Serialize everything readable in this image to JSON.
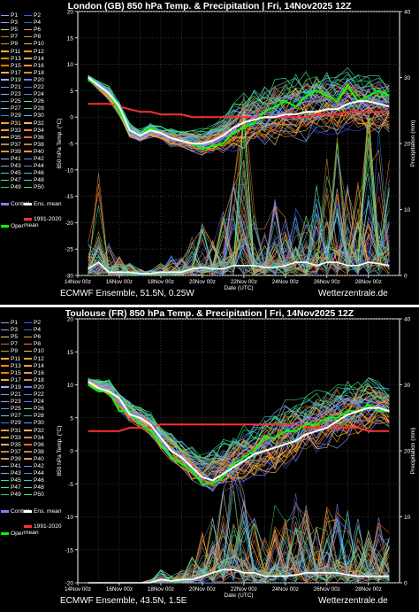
{
  "panels": [
    {
      "title": "London  (GB)  850 hPa Temp. & Precipitation | Fri, 14Nov2025 12Z",
      "footer_left": "ECMWF Ensemble, 51.5N, 0.25W",
      "footer_right": "Wetterzentrale.de"
    },
    {
      "title": "Toulouse  (FR)  850 hPa Temp. & Precipitation | Fri, 14Nov2025 12Z",
      "footer_left": "ECMWF Ensemble, 43.5N, 1.5E",
      "footer_right": "Wetterzentrale.de"
    }
  ],
  "legend": {
    "members": [
      "P1",
      "P2",
      "P3",
      "P4",
      "P5",
      "P6",
      "P7",
      "P8",
      "P9",
      "P10",
      "P11",
      "P12",
      "P13",
      "P14",
      "P15",
      "P16",
      "P17",
      "P18",
      "P19",
      "P20",
      "P21",
      "P22",
      "P23",
      "P24",
      "P25",
      "P26",
      "P27",
      "P28",
      "P29",
      "P30",
      "P31",
      "P32",
      "P33",
      "P34",
      "P35",
      "P36",
      "P37",
      "P38",
      "P39",
      "P40",
      "P41",
      "P42",
      "P43",
      "P44",
      "P45",
      "P46",
      "P47",
      "P48",
      "P49",
      "P50"
    ],
    "member_colors": [
      "#9aa0ff",
      "#3a5cff",
      "#9aa0ff",
      "#3a5cff",
      "#ffd27a",
      "#ff9a3a",
      "#c07a30",
      "#ff8a20",
      "#d6a020",
      "#ffc040",
      "#ffb030",
      "#ff9f10",
      "#ff8c00",
      "#ffa040",
      "#ff7a00",
      "#ff9050",
      "#e8b040",
      "#d09030",
      "#a0b0ff",
      "#6a80ff",
      "#7a9aff",
      "#5a70ff",
      "#90b0ff",
      "#5080ff",
      "#50a0ff",
      "#40ffa0",
      "#60d0ff",
      "#40c0c0",
      "#3080ff",
      "#50b0ff",
      "#ff9a40",
      "#ffb060",
      "#ffa030",
      "#ff8a30",
      "#ffb050",
      "#ff7020",
      "#c08040",
      "#d07a30",
      "#e09040",
      "#ff9a40",
      "#a0c0ff",
      "#7090ff",
      "#80a0ff",
      "#6080ff",
      "#40e0a0",
      "#40c0e0",
      "#30ff80",
      "#50e0c0",
      "#40d070",
      "#30ff60"
    ],
    "control_label": "Control",
    "mean_label": "Ens. mean",
    "oper_label": "Oper",
    "clim_label": "1991-2020\nmean",
    "control_color": "#8080ff",
    "mean_color": "#ffffff",
    "oper_color": "#00ff00",
    "clim_color": "#ff3030"
  },
  "chart_data": [
    {
      "type": "line",
      "location": "London (GB)",
      "x_tick_labels": [
        "14Nov 00z",
        "16Nov 00z",
        "18Nov 00z",
        "20Nov 00z",
        "22Nov 00z",
        "24Nov 00z",
        "26Nov 00z",
        "28Nov 00z"
      ],
      "xlabel": "Date (UTC)",
      "ylabel": "850 hPa Temp. (°C)",
      "ylabel_right": "Precipitation (mm)",
      "ylim": [
        -30,
        20
      ],
      "yticks": [
        -30,
        -25,
        -20,
        -15,
        -10,
        -5,
        0,
        5,
        10,
        15,
        20
      ],
      "ylim_right": [
        0,
        40
      ],
      "yticks_right": [
        0,
        10,
        20,
        30,
        40
      ],
      "x_days": [
        0.5,
        1,
        1.5,
        2,
        2.5,
        3,
        3.5,
        4,
        4.5,
        5,
        5.5,
        6,
        6.5,
        7,
        7.5,
        8,
        8.5,
        9,
        9.5,
        10,
        10.5,
        11,
        11.5,
        12,
        12.5,
        13,
        13.5,
        14,
        14.5,
        15
      ],
      "ens_mean": [
        7.5,
        6,
        4.5,
        2,
        -2.5,
        -3.5,
        -2.5,
        -3,
        -4,
        -4.5,
        -5,
        -5,
        -4.5,
        -3.5,
        -2,
        -1,
        -0.5,
        0,
        0,
        0.5,
        0.5,
        1,
        1,
        1.5,
        1.5,
        2.5,
        3,
        3,
        2.5,
        2
      ],
      "control": [
        7.5,
        6.5,
        5,
        1.5,
        -2,
        -4,
        -3,
        -3.5,
        -4.5,
        -4.5,
        -5,
        -5.5,
        -5,
        -4,
        -2.5,
        -1,
        0,
        1,
        0.5,
        1,
        2,
        3,
        3,
        3.5,
        2,
        4,
        3,
        2,
        3,
        1
      ],
      "oper": [
        7,
        6,
        4.5,
        1,
        -2.5,
        -3.5,
        -2,
        -3,
        -4,
        -4.5,
        -5,
        -6,
        -5.5,
        -5,
        -3,
        -2,
        -1,
        1,
        2,
        3,
        2,
        4,
        5,
        4,
        3,
        6,
        3,
        4,
        5,
        4
      ],
      "spread_upper": [
        8,
        7,
        6,
        3,
        -1,
        -2,
        -1,
        -1.5,
        -2,
        -2,
        -2,
        -2,
        -1,
        1,
        3,
        5,
        6,
        7,
        8,
        8,
        9,
        10,
        10,
        10,
        9,
        10,
        9,
        9,
        9,
        8
      ],
      "spread_lower": [
        7,
        5,
        3,
        0,
        -4,
        -5,
        -4,
        -4.5,
        -6,
        -6,
        -7,
        -7.5,
        -7,
        -7,
        -7,
        -7,
        -6,
        -6,
        -6,
        -5,
        -5,
        -5,
        -4,
        -4,
        -4,
        -3,
        -3,
        -4,
        -4,
        -4
      ],
      "climatology": [
        2.5,
        2.5,
        2.5,
        2,
        1.5,
        1,
        1,
        0.5,
        0.5,
        0.5,
        0,
        0,
        0,
        0,
        0,
        0,
        0,
        0,
        0,
        0,
        0,
        0,
        0.5,
        0.5,
        0.5,
        1,
        1,
        1,
        1,
        1
      ],
      "precip_mean": [
        1,
        2,
        0.5,
        0.5,
        0.5,
        0.3,
        0.3,
        0.5,
        0.5,
        0.5,
        1,
        1.2,
        1,
        1,
        1.5,
        1.5,
        1.5,
        1.2,
        1.2,
        1.5,
        2,
        2,
        1.5,
        2,
        2,
        1.5,
        1.5,
        2,
        1.8,
        1.5
      ],
      "precip_max": [
        5,
        20,
        5,
        3,
        2,
        1,
        1,
        2,
        3,
        3,
        6,
        8,
        6,
        10,
        15,
        28,
        10,
        8,
        12,
        9,
        12,
        10,
        14,
        18,
        22,
        14,
        16,
        26,
        22,
        18
      ]
    },
    {
      "type": "line",
      "location": "Toulouse (FR)",
      "x_tick_labels": [
        "14Nov 00z",
        "16Nov 00z",
        "18Nov 00z",
        "20Nov 00z",
        "22Nov 00z",
        "24Nov 00z",
        "26Nov 00z",
        "28Nov 00z"
      ],
      "xlabel": "Date (UTC)",
      "ylabel": "850 hPa Temp. (°C)",
      "ylabel_right": "Precipitation (mm)",
      "ylim": [
        -20,
        20
      ],
      "yticks": [
        -20,
        -15,
        -10,
        -5,
        0,
        5,
        10,
        15,
        20
      ],
      "ylim_right": [
        0,
        40
      ],
      "yticks_right": [
        0,
        10,
        20,
        30,
        40
      ],
      "x_days": [
        0.5,
        1,
        1.5,
        2,
        2.5,
        3,
        3.5,
        4,
        4.5,
        5,
        5.5,
        6,
        6.5,
        7,
        7.5,
        8,
        8.5,
        9,
        9.5,
        10,
        10.5,
        11,
        11.5,
        12,
        12.5,
        13,
        13.5,
        14,
        14.5,
        15
      ],
      "ens_mean": [
        10.5,
        9.5,
        9,
        8,
        5.5,
        5,
        4,
        2,
        0,
        -1,
        -2.5,
        -4,
        -4.5,
        -3.5,
        -2.5,
        -1.5,
        -0.5,
        0,
        0.5,
        1,
        1.5,
        2.5,
        3,
        3.5,
        4.5,
        5.5,
        6,
        6.5,
        6.5,
        6
      ],
      "control": [
        11,
        10,
        10,
        7,
        6,
        5,
        4,
        2,
        -1,
        -2,
        -3,
        -5,
        -6,
        -4,
        -3,
        -1,
        0,
        1,
        2,
        3,
        4,
        5,
        5,
        6,
        7,
        8,
        7,
        6,
        7,
        6
      ],
      "oper": [
        10,
        9,
        9,
        6,
        6,
        4,
        3,
        1,
        -1,
        -2,
        -3,
        -5,
        -5,
        -4,
        -2,
        -1,
        0,
        2,
        2,
        3,
        3,
        4,
        4,
        5,
        5,
        6,
        6,
        7,
        6,
        6
      ],
      "spread_upper": [
        11,
        11,
        11,
        9,
        8,
        7,
        6,
        4,
        3,
        2,
        1,
        0,
        1,
        2,
        3,
        4,
        5,
        6,
        7,
        8,
        8,
        9,
        10,
        10,
        11,
        11,
        11,
        12,
        11,
        10
      ],
      "spread_lower": [
        10,
        9,
        8,
        6,
        4,
        3,
        2,
        0,
        -2,
        -3,
        -5,
        -6,
        -7,
        -6,
        -6,
        -5,
        -5,
        -4,
        -4,
        -3,
        -2,
        -1,
        -1,
        0,
        0,
        1,
        2,
        2,
        3,
        3
      ],
      "climatology": [
        3,
        3,
        3,
        3,
        3.5,
        3.5,
        3.5,
        4,
        4,
        4,
        4,
        4,
        4,
        4,
        4,
        4,
        4,
        4,
        4,
        4,
        4,
        3.5,
        3.5,
        3.5,
        3.5,
        3.5,
        3.5,
        3,
        3,
        3
      ],
      "precip_mean": [
        0,
        0,
        0,
        0,
        0,
        0,
        0,
        0.5,
        0.3,
        0.5,
        0.5,
        1,
        1.5,
        2,
        2,
        1.5,
        1.5,
        1,
        1,
        1,
        1.2,
        1.5,
        1.5,
        1.5,
        1.5,
        1.2,
        1,
        1,
        1,
        1
      ],
      "precip_max": [
        0,
        0,
        0,
        0,
        0,
        0,
        0.5,
        2,
        1,
        2,
        4,
        8,
        10,
        14,
        20,
        14,
        10,
        8,
        12,
        10,
        14,
        12,
        10,
        12,
        14,
        12,
        10,
        8,
        10,
        8
      ]
    }
  ]
}
